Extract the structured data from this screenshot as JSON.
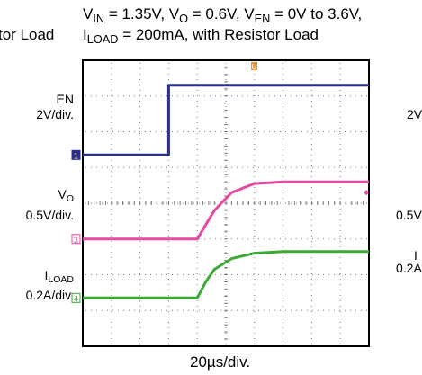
{
  "title": {
    "line1": {
      "vin_label": "V",
      "vin_sub": "IN",
      "vin_value": " = 1.35V, ",
      "vo_label": "V",
      "vo_sub": "O",
      "vo_value": " = 0.6V, ",
      "ven_label": "V",
      "ven_sub": "EN",
      "ven_value": " = 0V to 3.6V,"
    },
    "line2": {
      "iload_label": "I",
      "iload_sub": "LOAD",
      "iload_value": " = 200mA, with Resistor Load"
    },
    "left_fragment": "tor Load"
  },
  "x_axis": {
    "label": "20µs/div."
  },
  "channels": [
    {
      "id": "en",
      "name": "EN",
      "name_sub": "",
      "scale": "2V/div.",
      "marker": "1",
      "color": "#2b2f8c"
    },
    {
      "id": "vo",
      "name": "V",
      "name_sub": "O",
      "scale": "0.5V/div.",
      "marker": "3",
      "color": "#e64aa0"
    },
    {
      "id": "iload",
      "name": "I",
      "name_sub": "LOAD",
      "scale": "0.2A/div.",
      "marker": "4",
      "color": "#3aaa35"
    }
  ],
  "trigger_marker": {
    "label": "U",
    "color": "#f7931e"
  },
  "right_fragments": {
    "en": "2V",
    "vo": "0.5V",
    "iload_a": "I",
    "iload_b": "0.2A"
  },
  "chart_data": {
    "type": "line",
    "title": "VIN = 1.35V, VO = 0.6V, VEN = 0V to 3.6V, ILOAD = 200mA, with Resistor Load",
    "xlabel": "20µs/div.",
    "x_unit": "divisions",
    "xlim": [
      0,
      10
    ],
    "ylim": [
      0,
      8
    ],
    "grid": true,
    "series": [
      {
        "name": "EN",
        "x": [
          0,
          3.0,
          3.0,
          10
        ],
        "y": [
          5.35,
          5.35,
          7.3,
          7.3
        ]
      },
      {
        "name": "VO",
        "x": [
          0,
          4.0,
          4.3,
          4.6,
          5.2,
          6.0,
          7.0,
          10
        ],
        "y": [
          3.0,
          3.0,
          3.4,
          3.8,
          4.3,
          4.55,
          4.6,
          4.6
        ]
      },
      {
        "name": "ILOAD",
        "x": [
          0,
          4.0,
          4.3,
          4.6,
          5.2,
          6.0,
          7.0,
          10
        ],
        "y": [
          1.35,
          1.35,
          1.8,
          2.15,
          2.45,
          2.6,
          2.65,
          2.65
        ]
      }
    ]
  }
}
